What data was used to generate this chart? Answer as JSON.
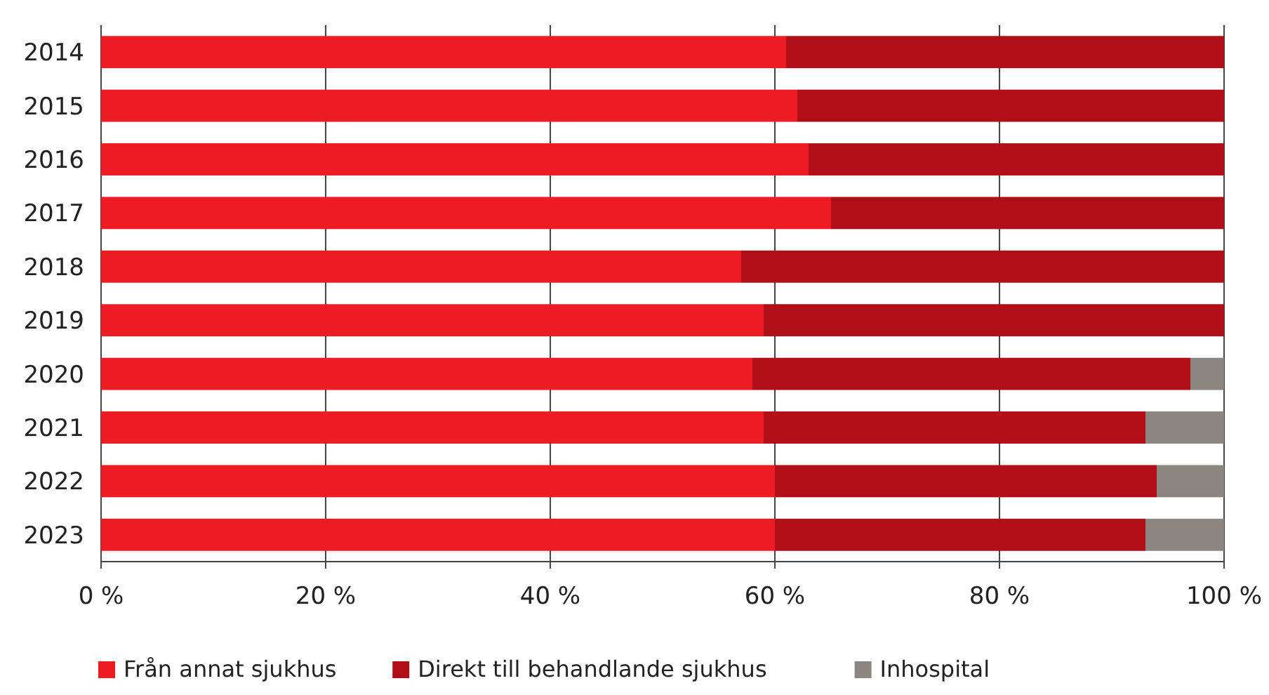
{
  "chart_data": {
    "type": "bar",
    "orientation": "horizontal",
    "stacked": true,
    "categories": [
      "2014",
      "2015",
      "2016",
      "2017",
      "2018",
      "2019",
      "2020",
      "2021",
      "2022",
      "2023"
    ],
    "series": [
      {
        "name": "Från annat sjukhus",
        "color": "#ed1c24",
        "values": [
          61,
          62,
          63,
          65,
          57,
          59,
          58,
          59,
          60,
          60
        ]
      },
      {
        "name": "Direkt till behandlande sjukhus",
        "color": "#b10f18",
        "values": [
          39,
          38,
          37,
          35,
          43,
          41,
          39,
          34,
          34,
          33
        ]
      },
      {
        "name": "Inhospital",
        "color": "#8c8580",
        "values": [
          null,
          null,
          null,
          null,
          null,
          null,
          3,
          7,
          6,
          7
        ]
      }
    ],
    "xlim": [
      0,
      100
    ],
    "xticks": [
      {
        "value": 0,
        "label": "0 %"
      },
      {
        "value": 20,
        "label": "20 %"
      },
      {
        "value": 40,
        "label": "40 %"
      },
      {
        "value": 60,
        "label": "60 %"
      },
      {
        "value": 80,
        "label": "80 %"
      },
      {
        "value": 100,
        "label": "100 %"
      }
    ],
    "grid": "x",
    "legend": "bottom"
  }
}
